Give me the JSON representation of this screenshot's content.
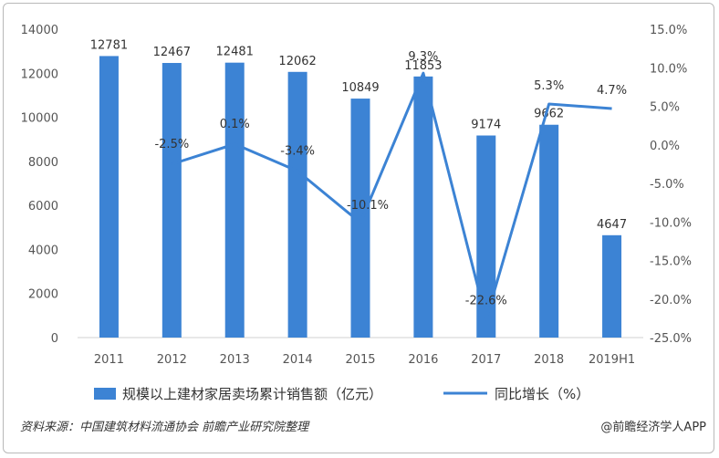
{
  "chart_data": {
    "type": "bar",
    "categories": [
      "2011",
      "2012",
      "2013",
      "2014",
      "2015",
      "2016",
      "2017",
      "2018",
      "2019H1"
    ],
    "series": [
      {
        "name": "规模以上建材家居卖场累计销售额（亿元）",
        "type": "bar",
        "axis": "left",
        "color": "#3c83d4",
        "values": [
          12781,
          12467,
          12481,
          12062,
          10849,
          11853,
          9174,
          9662,
          4647
        ],
        "labels": [
          "12781",
          "12467",
          "12481",
          "12062",
          "10849",
          "11853",
          "9174",
          "9662",
          "4647"
        ]
      },
      {
        "name": "同比增长（%）",
        "type": "line",
        "axis": "right",
        "color": "#3c83d4",
        "values": [
          null,
          -2.5,
          0.1,
          -3.4,
          -10.1,
          9.3,
          -22.6,
          5.3,
          4.7
        ],
        "labels": [
          "",
          "-2.5%",
          "0.1%",
          "-3.4%",
          "-10.1%",
          "9.3%",
          "-22.6%",
          "5.3%",
          "4.7%"
        ]
      }
    ],
    "y_left": {
      "min": 0,
      "max": 14000,
      "ticks": [
        "0",
        "2000",
        "4000",
        "6000",
        "8000",
        "10000",
        "12000",
        "14000"
      ]
    },
    "y_right": {
      "min": -25,
      "max": 15,
      "ticks": [
        "-25.0%",
        "-20.0%",
        "-15.0%",
        "-10.0%",
        "-5.0%",
        "0.0%",
        "5.0%",
        "10.0%",
        "15.0%"
      ]
    },
    "grid": false,
    "legend_position": "bottom"
  },
  "footer": {
    "source": "资料来源：中国建筑材料流通协会 前瞻产业研究院整理",
    "credit": "@前瞻经济学人APP"
  }
}
